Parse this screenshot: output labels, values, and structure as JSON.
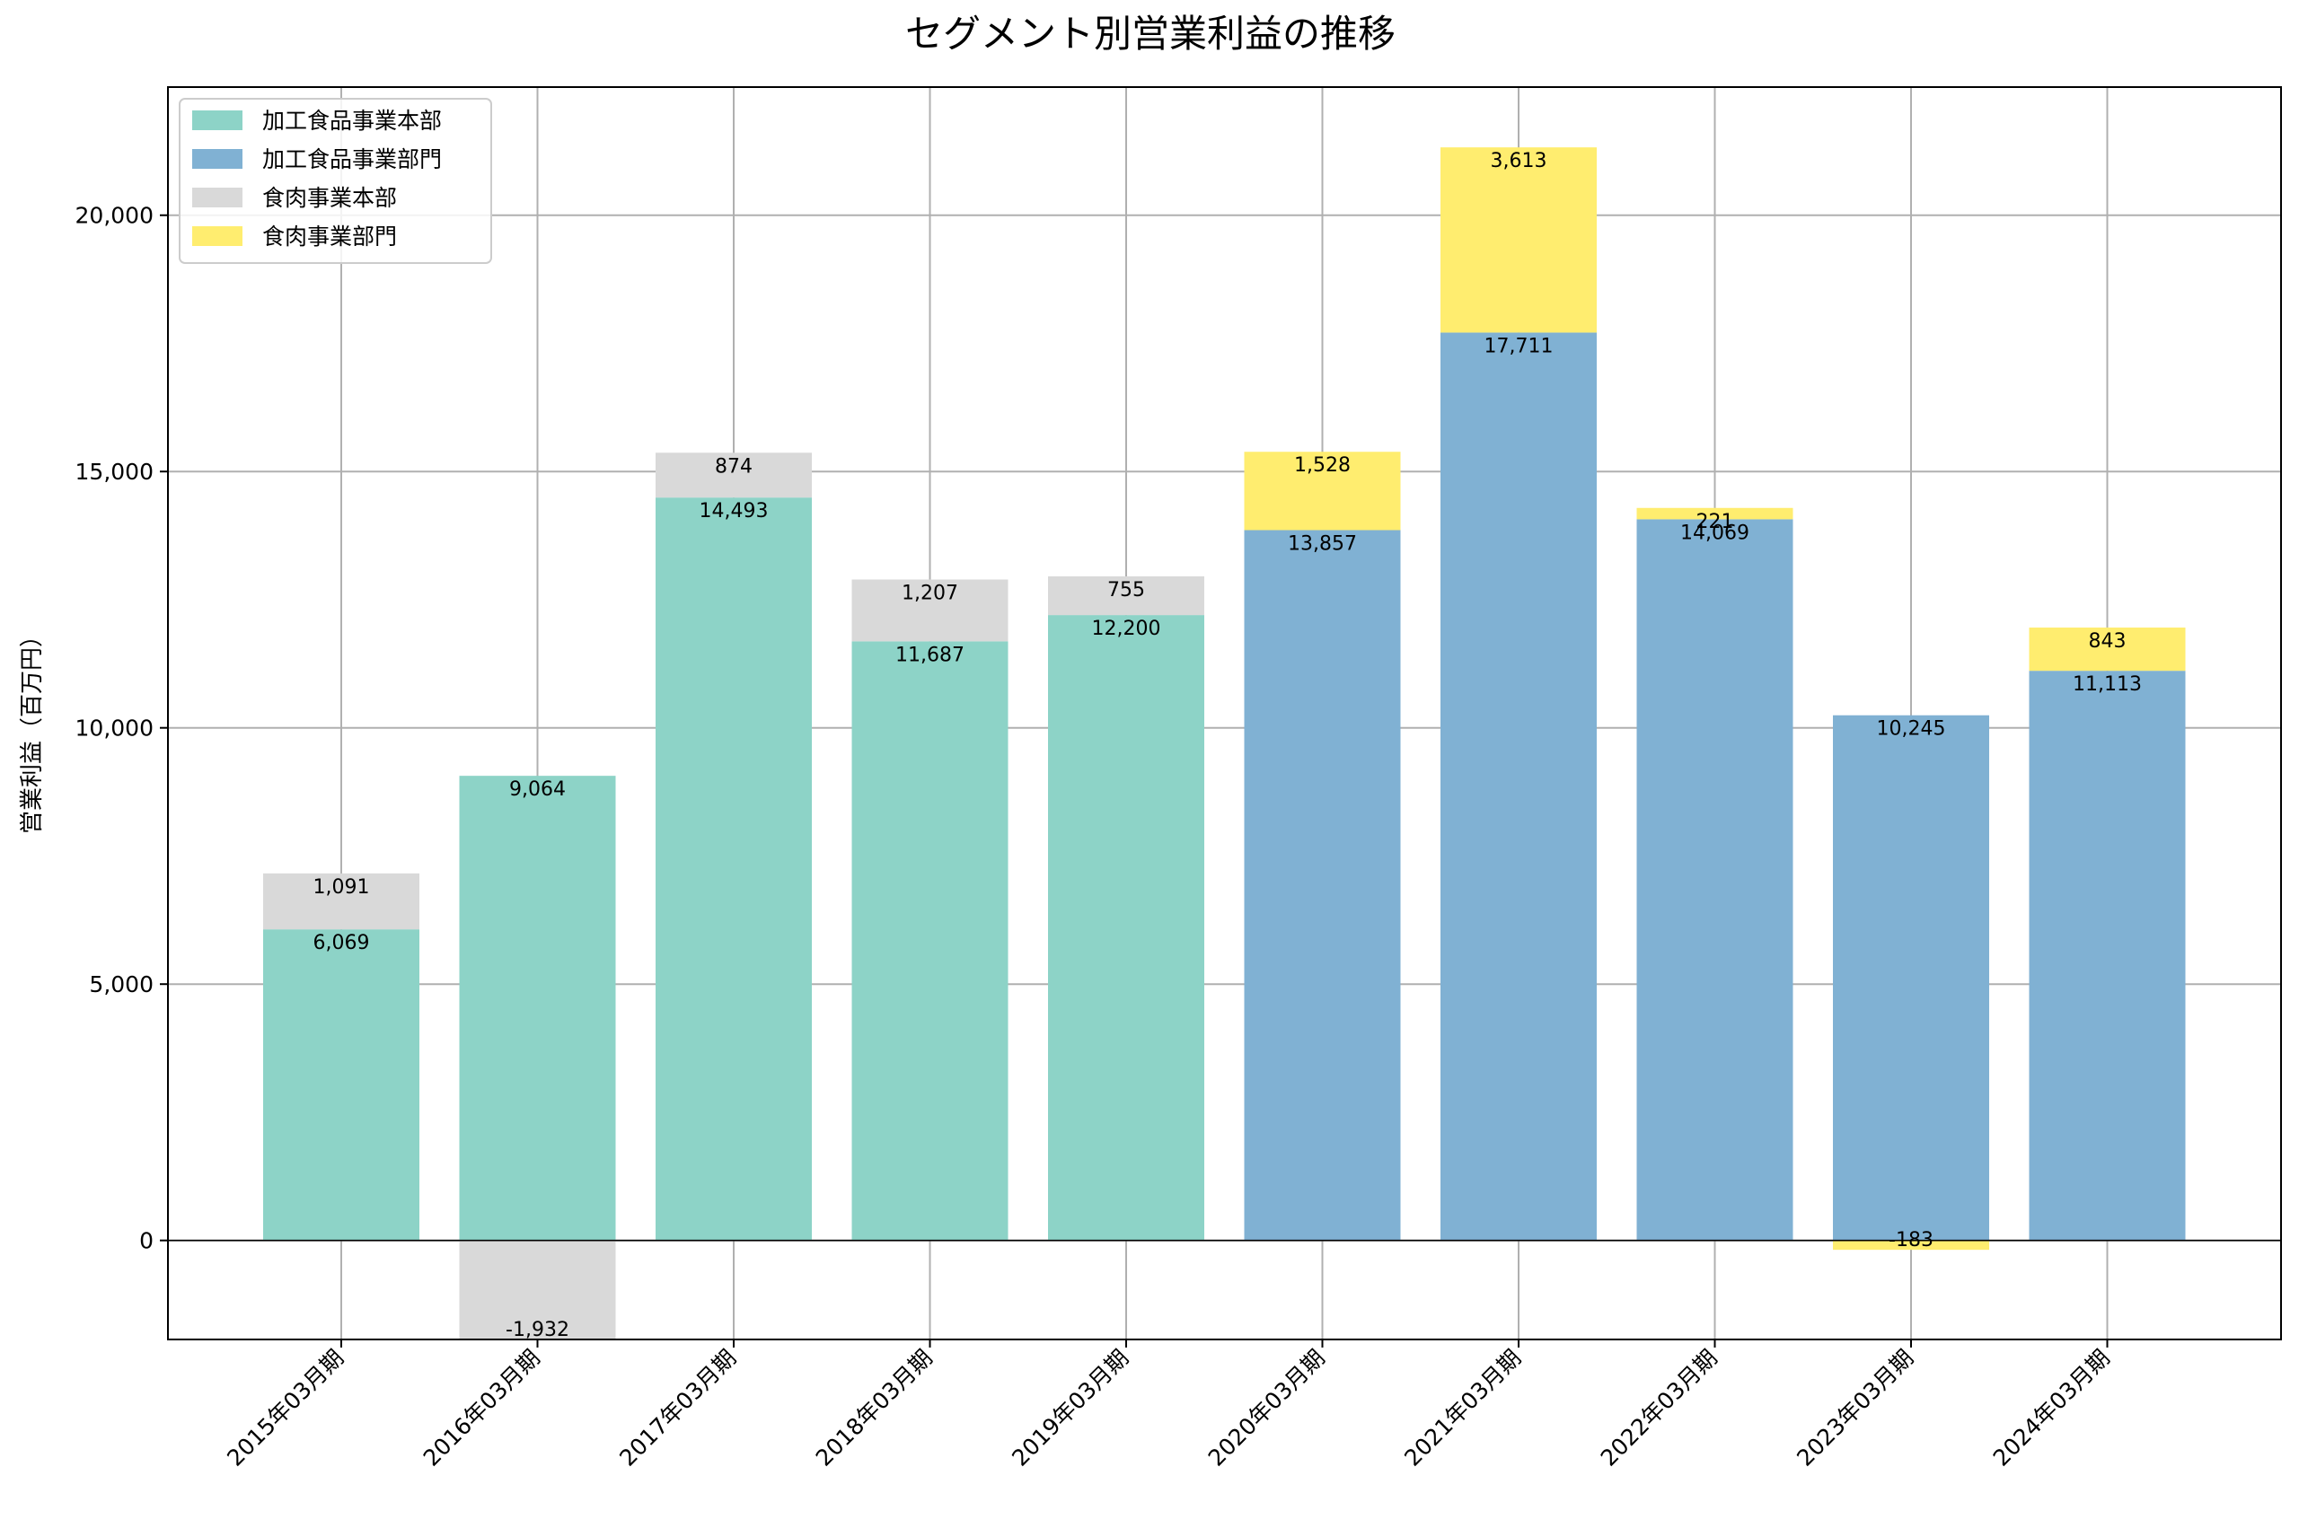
{
  "chart_data": {
    "type": "bar",
    "stacked": true,
    "title": "セグメント別営業利益の推移",
    "xlabel": "",
    "ylabel": "営業利益（百万円）",
    "ylim": [
      -1932,
      22500
    ],
    "yticks": [
      0,
      5000,
      10000,
      15000,
      20000
    ],
    "ytick_labels": [
      "0",
      "5,000",
      "10,000",
      "15,000",
      "20,000"
    ],
    "grid": true,
    "legend_position": "top-left",
    "categories": [
      "2015年03月期",
      "2016年03月期",
      "2017年03月期",
      "2018年03月期",
      "2019年03月期",
      "2020年03月期",
      "2021年03月期",
      "2022年03月期",
      "2023年03月期",
      "2024年03月期"
    ],
    "series": [
      {
        "name": "加工食品事業本部",
        "color": "#8dd3c7",
        "values": [
          6069,
          9064,
          14493,
          11687,
          12200,
          null,
          null,
          null,
          null,
          null
        ],
        "labels": [
          "6,069",
          "9,064",
          "14,493",
          "11,687",
          "12,200",
          "",
          "",
          "",
          "",
          ""
        ]
      },
      {
        "name": "加工食品事業部門",
        "color": "#80b1d3",
        "values": [
          null,
          null,
          null,
          null,
          null,
          13857,
          17711,
          14069,
          10245,
          11113
        ],
        "labels": [
          "",
          "",
          "",
          "",
          "",
          "13,857",
          "17,711",
          "14,069",
          "10,245",
          "11,113"
        ]
      },
      {
        "name": "食肉事業本部",
        "color": "#d9d9d9",
        "values": [
          1091,
          -1932,
          874,
          1207,
          755,
          null,
          null,
          null,
          null,
          null
        ],
        "labels": [
          "1,091",
          "-1,932",
          "874",
          "1,207",
          "755",
          "",
          "",
          "",
          "",
          ""
        ]
      },
      {
        "name": "食肉事業部門",
        "color": "#ffed6f",
        "values": [
          null,
          null,
          null,
          null,
          null,
          1528,
          3613,
          221,
          -183,
          843
        ],
        "labels": [
          "",
          "",
          "",
          "",
          "",
          "1,528",
          "3,613",
          "221",
          "-183",
          "843"
        ]
      }
    ]
  }
}
